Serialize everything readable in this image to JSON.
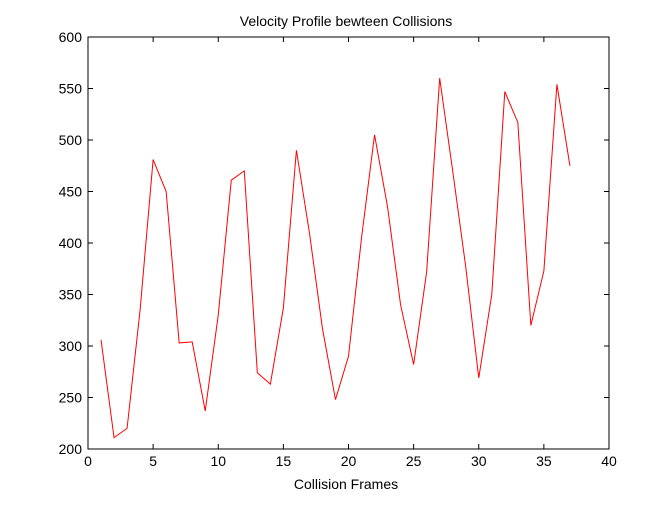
{
  "figure": {
    "title": "Velocity Profile bewteen Collisions"
  },
  "chart_data": {
    "type": "line",
    "title": "Velocity Profile bewteen Collisions",
    "xlabel": "Collision Frames",
    "ylabel": "",
    "xlim": [
      0,
      40
    ],
    "ylim": [
      200,
      600
    ],
    "xticks": [
      0,
      5,
      10,
      15,
      20,
      25,
      30,
      35,
      40
    ],
    "yticks": [
      200,
      250,
      300,
      350,
      400,
      450,
      500,
      550,
      600
    ],
    "grid": false,
    "legend": "none",
    "series": [
      {
        "color": "#ff0000",
        "x": [
          1,
          2,
          3,
          4,
          5,
          6,
          7,
          8,
          9,
          10,
          11,
          12,
          13,
          14,
          15,
          16,
          17,
          18,
          19,
          20,
          21,
          22,
          23,
          24,
          25,
          26,
          27,
          28,
          29,
          30,
          31,
          32,
          33,
          34,
          35,
          36,
          37
        ],
        "values": [
          306,
          211,
          220,
          335,
          481,
          450,
          303,
          304,
          237,
          330,
          461,
          470,
          274,
          263,
          337,
          490,
          410,
          317,
          248,
          290,
          405,
          505,
          435,
          340,
          282,
          372,
          560,
          470,
          377,
          269,
          350,
          547,
          517,
          320,
          373,
          554,
          475
        ]
      }
    ]
  }
}
